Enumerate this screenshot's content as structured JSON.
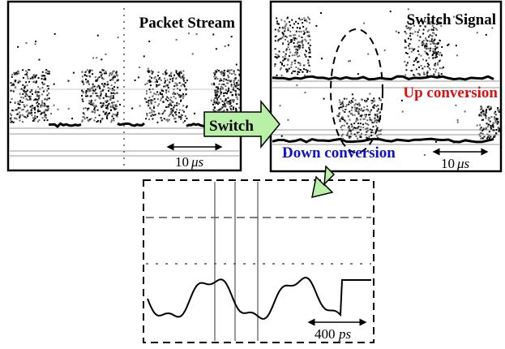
{
  "panels": {
    "packet_stream": {
      "title": "Packet Stream",
      "scale": {
        "value": "10",
        "unit": "μs"
      }
    },
    "switch_signal": {
      "title": "Switch Signal",
      "up_label": "Up conversion",
      "down_label": "Down conversion",
      "scale": {
        "value": "10",
        "unit": "μs"
      }
    },
    "zoom": {
      "scale": {
        "value": "400",
        "unit": "ps"
      }
    }
  },
  "arrow_label": "Switch"
}
